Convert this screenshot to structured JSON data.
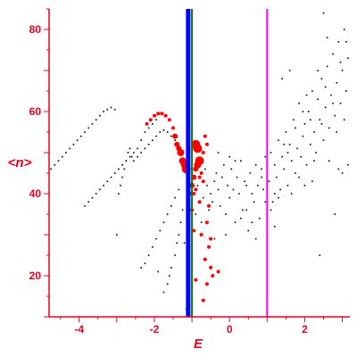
{
  "chart_data": {
    "type": "scatter",
    "title": "",
    "xlabel": "E",
    "ylabel": "<n>",
    "xlim": [
      -4.8,
      3.2
    ],
    "ylim": [
      10,
      85
    ],
    "xticks": [
      -4,
      -2,
      0,
      2
    ],
    "yticks": [
      20,
      40,
      60,
      80
    ],
    "grid": false,
    "colors": {
      "axis": "#e8001c",
      "points": "#000000",
      "red_points": "#ff0000",
      "blue_line": "#0000ff",
      "green_line": "#008000",
      "magenta_line": "#ff00ff"
    },
    "vertical_lines": [
      {
        "x": -1.1,
        "color": "#0000ff",
        "width": "thick"
      },
      {
        "x": -1.0,
        "color": "#008000",
        "width": "thin"
      },
      {
        "x": 1.0,
        "color": "#ff00ff",
        "width": "thin"
      }
    ],
    "series": [
      {
        "color": "#000000",
        "style": "small-dots",
        "points": [
          [
            -4.75,
            46
          ],
          [
            -4.65,
            47
          ],
          [
            -4.55,
            48
          ],
          [
            -4.45,
            49
          ],
          [
            -4.35,
            50
          ],
          [
            -4.25,
            51
          ],
          [
            -4.15,
            52
          ],
          [
            -4.05,
            53
          ],
          [
            -3.95,
            54
          ],
          [
            -3.85,
            55
          ],
          [
            -3.75,
            56
          ],
          [
            -3.65,
            57
          ],
          [
            -3.55,
            58
          ],
          [
            -3.45,
            59
          ],
          [
            -3.35,
            60
          ],
          [
            -3.25,
            60.5
          ],
          [
            -3.15,
            61
          ],
          [
            -3.05,
            60.5
          ],
          [
            -3.85,
            37
          ],
          [
            -3.75,
            38
          ],
          [
            -3.65,
            39
          ],
          [
            -3.55,
            40
          ],
          [
            -3.45,
            41
          ],
          [
            -3.35,
            42
          ],
          [
            -3.25,
            43
          ],
          [
            -3.15,
            44
          ],
          [
            -3.05,
            45
          ],
          [
            -2.95,
            46
          ],
          [
            -2.85,
            47
          ],
          [
            -2.75,
            48
          ],
          [
            -2.65,
            49
          ],
          [
            -2.55,
            50
          ],
          [
            -2.45,
            51
          ],
          [
            -2.35,
            53
          ],
          [
            -2.25,
            55
          ],
          [
            -2.15,
            56
          ],
          [
            -2.05,
            57
          ],
          [
            -1.95,
            58
          ],
          [
            -2.95,
            40
          ],
          [
            -2.9,
            42
          ],
          [
            -2.85,
            44
          ],
          [
            -2.8,
            46
          ],
          [
            -2.75,
            48
          ],
          [
            -2.7,
            50
          ],
          [
            -2.65,
            51
          ],
          [
            -2.6,
            49
          ],
          [
            -2.55,
            48
          ],
          [
            -2.45,
            49
          ],
          [
            -2.35,
            50
          ],
          [
            -2.25,
            51
          ],
          [
            -2.15,
            52
          ],
          [
            -2.05,
            53
          ],
          [
            -1.95,
            54
          ],
          [
            -1.85,
            55
          ],
          [
            -1.75,
            55.5
          ],
          [
            -1.65,
            55
          ],
          [
            -1.55,
            54
          ],
          [
            -1.45,
            53
          ],
          [
            -2.35,
            22
          ],
          [
            -2.25,
            23
          ],
          [
            -2.15,
            25
          ],
          [
            -2.05,
            27
          ],
          [
            -1.95,
            29
          ],
          [
            -1.85,
            31
          ],
          [
            -1.75,
            33
          ],
          [
            -1.65,
            35
          ],
          [
            -1.55,
            37
          ],
          [
            -1.45,
            39
          ],
          [
            -1.35,
            41
          ],
          [
            -1.75,
            16
          ],
          [
            -1.65,
            18
          ],
          [
            -1.6,
            20
          ],
          [
            -1.55,
            22
          ],
          [
            -1.45,
            25
          ],
          [
            -1.4,
            28
          ],
          [
            -1.35,
            30
          ],
          [
            -1.3,
            33
          ],
          [
            -1.25,
            36
          ],
          [
            -3.0,
            30
          ],
          [
            -1.9,
            21
          ],
          [
            -1.2,
            28
          ],
          [
            -1.15,
            12
          ],
          [
            -0.6,
            42
          ],
          [
            -0.5,
            40
          ],
          [
            -0.45,
            38
          ],
          [
            -0.4,
            43
          ],
          [
            -0.35,
            45
          ],
          [
            -0.3,
            41
          ],
          [
            -0.25,
            37
          ],
          [
            -0.2,
            44
          ],
          [
            -0.15,
            47
          ],
          [
            -0.1,
            35
          ],
          [
            -0.05,
            42
          ],
          [
            0.0,
            39
          ],
          [
            0.05,
            46
          ],
          [
            0.1,
            41
          ],
          [
            0.15,
            33
          ],
          [
            0.2,
            44
          ],
          [
            0.25,
            40
          ],
          [
            0.3,
            48
          ],
          [
            0.35,
            36
          ],
          [
            0.4,
            43
          ],
          [
            0.45,
            42
          ],
          [
            0.5,
            31
          ],
          [
            0.55,
            45
          ],
          [
            0.6,
            40
          ],
          [
            0.65,
            38
          ],
          [
            0.7,
            47
          ],
          [
            0.75,
            42
          ],
          [
            0.8,
            34
          ],
          [
            0.85,
            44
          ],
          [
            0.9,
            41
          ],
          [
            0.95,
            49
          ],
          [
            -0.9,
            35
          ],
          [
            -0.85,
            42
          ],
          [
            -0.75,
            33
          ],
          [
            -0.7,
            39
          ],
          [
            -0.65,
            46
          ],
          [
            -0.55,
            36
          ],
          [
            -0.4,
            29
          ],
          [
            -0.3,
            50
          ],
          [
            -0.1,
            30
          ],
          [
            0.0,
            49
          ],
          [
            0.15,
            48
          ],
          [
            0.3,
            34
          ],
          [
            0.45,
            36
          ],
          [
            0.6,
            33
          ],
          [
            0.7,
            29
          ],
          [
            0.85,
            46
          ],
          [
            0.95,
            38
          ],
          [
            1.05,
            43
          ],
          [
            1.1,
            50
          ],
          [
            1.15,
            38
          ],
          [
            1.2,
            47
          ],
          [
            1.25,
            44
          ],
          [
            1.3,
            53
          ],
          [
            1.35,
            41
          ],
          [
            1.4,
            49
          ],
          [
            1.45,
            46
          ],
          [
            1.5,
            55
          ],
          [
            1.55,
            42
          ],
          [
            1.6,
            52
          ],
          [
            1.65,
            48
          ],
          [
            1.7,
            58
          ],
          [
            1.75,
            45
          ],
          [
            1.8,
            51
          ],
          [
            1.85,
            62
          ],
          [
            1.9,
            49
          ],
          [
            1.95,
            54
          ],
          [
            2.0,
            57
          ],
          [
            2.05,
            47
          ],
          [
            2.1,
            60
          ],
          [
            2.15,
            52
          ],
          [
            2.2,
            65
          ],
          [
            2.25,
            55
          ],
          [
            2.3,
            50
          ],
          [
            2.35,
            63
          ],
          [
            2.4,
            58
          ],
          [
            2.45,
            68
          ],
          [
            2.5,
            53
          ],
          [
            2.55,
            61
          ],
          [
            2.6,
            71
          ],
          [
            2.65,
            56
          ],
          [
            2.7,
            64
          ],
          [
            2.75,
            74
          ],
          [
            2.8,
            59
          ],
          [
            2.85,
            67
          ],
          [
            2.9,
            77
          ],
          [
            2.95,
            62
          ],
          [
            3.0,
            70
          ],
          [
            3.05,
            80
          ],
          [
            3.1,
            65
          ],
          [
            3.15,
            73
          ],
          [
            1.1,
            36
          ],
          [
            1.2,
            40
          ],
          [
            1.3,
            39
          ],
          [
            1.45,
            52
          ],
          [
            1.55,
            50
          ],
          [
            1.65,
            40
          ],
          [
            1.75,
            56
          ],
          [
            1.85,
            44
          ],
          [
            1.95,
            60
          ],
          [
            2.05,
            64
          ],
          [
            2.15,
            58
          ],
          [
            2.25,
            48
          ],
          [
            2.35,
            70
          ],
          [
            2.45,
            57
          ],
          [
            2.55,
            66
          ],
          [
            2.65,
            48
          ],
          [
            2.75,
            62
          ],
          [
            2.85,
            55
          ],
          [
            2.95,
            72
          ],
          [
            3.05,
            58
          ],
          [
            3.15,
            47
          ],
          [
            3.1,
            77
          ],
          [
            3.0,
            45
          ],
          [
            2.9,
            46
          ],
          [
            2.8,
            35
          ],
          [
            2.6,
            78
          ],
          [
            2.4,
            25
          ],
          [
            2.5,
            84
          ],
          [
            1.6,
            70
          ],
          [
            1.4,
            68
          ],
          [
            1.2,
            32
          ],
          [
            2.0,
            42
          ],
          [
            2.2,
            43
          ]
        ]
      },
      {
        "color": "#ff0000",
        "style": "red-markers",
        "points": [
          [
            -2.2,
            57
          ],
          [
            -2.1,
            58
          ],
          [
            -2.0,
            59
          ],
          [
            -1.9,
            59.5
          ],
          [
            -1.8,
            59.5
          ],
          [
            -1.7,
            59
          ],
          [
            -1.6,
            58
          ],
          [
            -1.5,
            56
          ],
          [
            -1.45,
            54
          ],
          [
            -1.4,
            52
          ],
          [
            -1.35,
            51
          ],
          [
            -1.3,
            50
          ],
          [
            -1.25,
            48
          ],
          [
            -1.2,
            47
          ],
          [
            -1.15,
            46
          ],
          [
            -0.9,
            52
          ],
          [
            -0.85,
            51
          ],
          [
            -0.8,
            48
          ],
          [
            -0.85,
            47
          ],
          [
            -0.9,
            46
          ],
          [
            -0.95,
            44
          ],
          [
            -1.0,
            42
          ],
          [
            -1.05,
            40
          ],
          [
            -1.1,
            39
          ],
          [
            -0.7,
            50
          ],
          [
            -0.65,
            54
          ],
          [
            -0.6,
            52
          ],
          [
            -0.75,
            45
          ],
          [
            -0.8,
            44
          ],
          [
            -0.7,
            43
          ],
          [
            -0.9,
            41
          ],
          [
            -0.95,
            40
          ],
          [
            -1.0,
            36
          ],
          [
            -0.8,
            38
          ],
          [
            -0.55,
            37
          ],
          [
            -0.6,
            33
          ],
          [
            -0.75,
            30
          ],
          [
            -0.95,
            31
          ],
          [
            -0.5,
            29
          ],
          [
            -0.55,
            27
          ],
          [
            -0.65,
            24
          ],
          [
            -0.5,
            22
          ],
          [
            -0.45,
            20
          ],
          [
            -0.6,
            18
          ],
          [
            -0.9,
            19
          ],
          [
            -0.3,
            21
          ],
          [
            -0.7,
            14
          ]
        ],
        "sizes": [
          2,
          2,
          2,
          2,
          2,
          2,
          2,
          2,
          3,
          3,
          3,
          4,
          4,
          4,
          5,
          5,
          5,
          5,
          4,
          3,
          3,
          3,
          2,
          2,
          2,
          2,
          2,
          2,
          2,
          2,
          2,
          2,
          2,
          2,
          2,
          2,
          2,
          2,
          2,
          2,
          2,
          2,
          2,
          2,
          2,
          2,
          2
        ]
      }
    ]
  }
}
